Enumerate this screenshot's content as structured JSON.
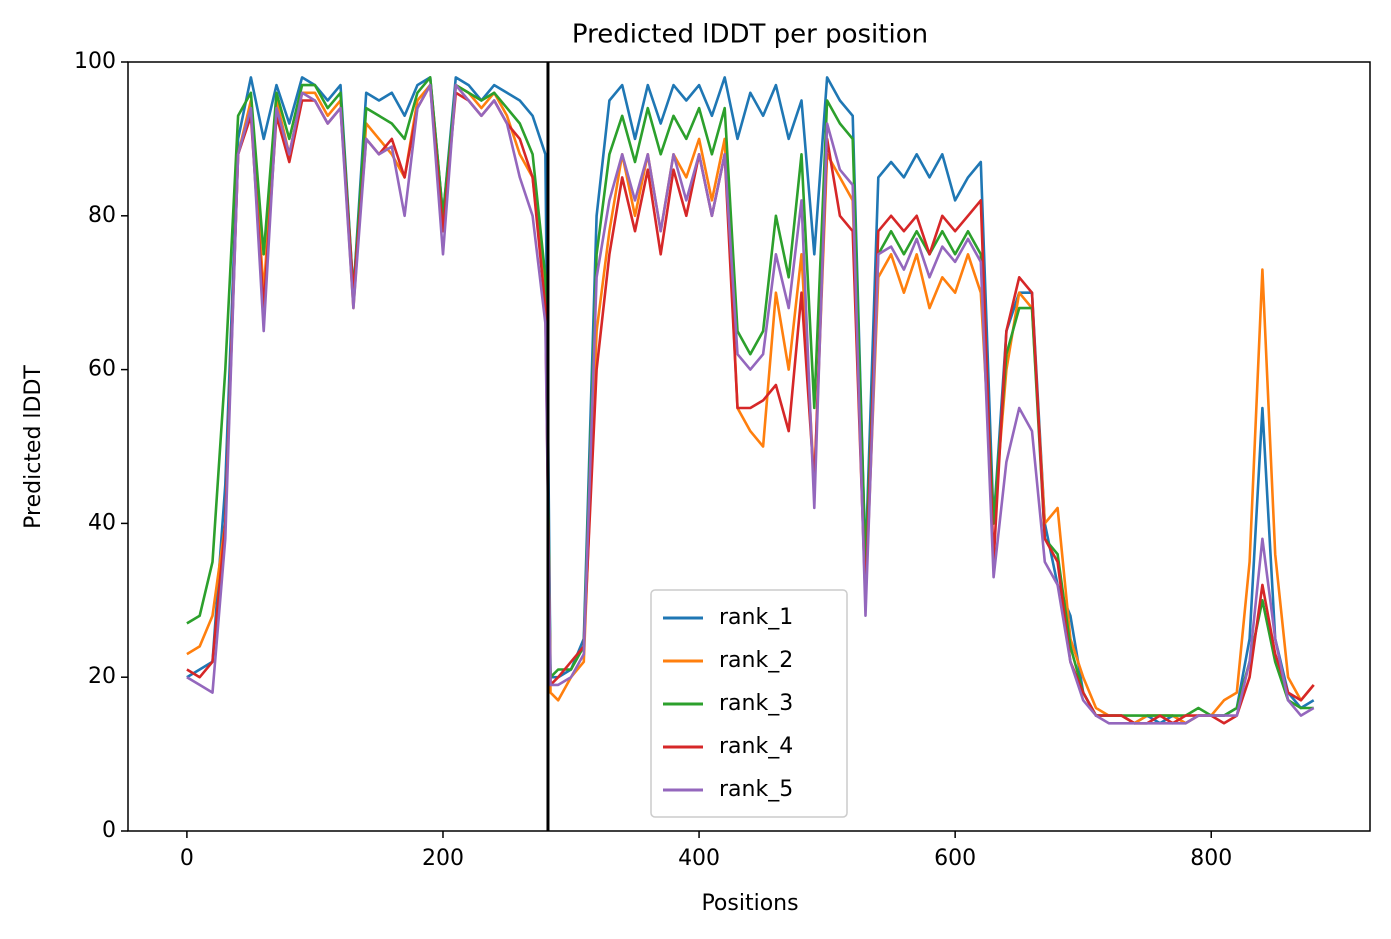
{
  "chart_data": {
    "type": "line",
    "title": "Predicted lDDT per position",
    "xlabel": "Positions",
    "ylabel": "Predicted lDDT",
    "x": [
      0,
      10,
      20,
      30,
      40,
      50,
      60,
      70,
      80,
      90,
      100,
      110,
      120,
      130,
      140,
      150,
      160,
      170,
      180,
      190,
      200,
      210,
      220,
      230,
      240,
      250,
      260,
      270,
      280,
      284,
      290,
      300,
      310,
      320,
      330,
      340,
      350,
      360,
      370,
      380,
      390,
      400,
      410,
      420,
      430,
      440,
      450,
      460,
      470,
      480,
      490,
      500,
      510,
      520,
      530,
      540,
      550,
      560,
      570,
      580,
      590,
      600,
      610,
      620,
      630,
      640,
      650,
      660,
      670,
      680,
      690,
      700,
      710,
      720,
      730,
      740,
      750,
      760,
      770,
      780,
      790,
      800,
      810,
      820,
      830,
      840,
      850,
      860,
      870,
      880
    ],
    "series": [
      {
        "name": "rank_1",
        "color": "#1f77b4",
        "values": [
          20,
          21,
          22,
          45,
          90,
          98,
          90,
          97,
          92,
          98,
          97,
          95,
          97,
          70,
          96,
          95,
          96,
          93,
          97,
          98,
          80,
          98,
          97,
          95,
          97,
          96,
          95,
          93,
          88,
          20,
          20,
          21,
          25,
          80,
          95,
          97,
          90,
          97,
          92,
          97,
          95,
          97,
          93,
          98,
          90,
          96,
          93,
          97,
          90,
          95,
          75,
          98,
          95,
          93,
          35,
          85,
          87,
          85,
          88,
          85,
          88,
          82,
          85,
          87,
          40,
          65,
          70,
          70,
          40,
          32,
          28,
          18,
          15,
          15,
          15,
          14,
          15,
          14,
          15,
          14,
          15,
          15,
          15,
          16,
          25,
          55,
          25,
          18,
          16,
          17
        ]
      },
      {
        "name": "rank_2",
        "color": "#ff7f0e",
        "values": [
          23,
          24,
          28,
          40,
          88,
          95,
          70,
          95,
          88,
          96,
          96,
          93,
          95,
          68,
          92,
          90,
          88,
          85,
          95,
          97,
          78,
          97,
          96,
          94,
          96,
          93,
          88,
          85,
          70,
          18,
          17,
          20,
          22,
          65,
          78,
          88,
          80,
          88,
          78,
          88,
          85,
          90,
          82,
          90,
          55,
          52,
          50,
          70,
          60,
          75,
          45,
          88,
          85,
          82,
          30,
          72,
          75,
          70,
          75,
          68,
          72,
          70,
          75,
          70,
          40,
          60,
          70,
          68,
          40,
          42,
          25,
          20,
          16,
          15,
          15,
          14,
          15,
          15,
          15,
          14,
          15,
          15,
          17,
          18,
          35,
          73,
          36,
          20,
          17,
          19
        ]
      },
      {
        "name": "rank_3",
        "color": "#2ca02c",
        "values": [
          27,
          28,
          35,
          60,
          93,
          96,
          75,
          96,
          90,
          97,
          97,
          94,
          96,
          70,
          94,
          93,
          92,
          90,
          96,
          98,
          80,
          97,
          96,
          95,
          96,
          94,
          92,
          88,
          72,
          20,
          21,
          21,
          24,
          75,
          88,
          93,
          87,
          94,
          88,
          93,
          90,
          94,
          88,
          94,
          65,
          62,
          65,
          80,
          72,
          88,
          55,
          95,
          92,
          90,
          35,
          75,
          78,
          75,
          78,
          75,
          78,
          75,
          78,
          75,
          40,
          62,
          68,
          68,
          38,
          36,
          24,
          18,
          15,
          15,
          15,
          15,
          15,
          15,
          15,
          15,
          16,
          15,
          15,
          16,
          22,
          30,
          22,
          17,
          16,
          16
        ]
      },
      {
        "name": "rank_4",
        "color": "#d62728",
        "values": [
          21,
          20,
          22,
          40,
          88,
          93,
          68,
          93,
          87,
          95,
          95,
          92,
          94,
          70,
          90,
          88,
          90,
          85,
          94,
          97,
          78,
          96,
          95,
          93,
          95,
          92,
          90,
          85,
          68,
          19,
          20,
          22,
          24,
          60,
          75,
          85,
          78,
          86,
          75,
          86,
          80,
          88,
          80,
          88,
          55,
          55,
          56,
          58,
          52,
          70,
          45,
          90,
          80,
          78,
          30,
          78,
          80,
          78,
          80,
          75,
          80,
          78,
          80,
          82,
          35,
          65,
          72,
          70,
          38,
          35,
          22,
          18,
          15,
          15,
          15,
          14,
          14,
          15,
          14,
          15,
          15,
          15,
          14,
          15,
          20,
          32,
          23,
          18,
          17,
          19
        ]
      },
      {
        "name": "rank_5",
        "color": "#9467bd",
        "values": [
          20,
          19,
          18,
          38,
          88,
          94,
          65,
          94,
          88,
          96,
          95,
          92,
          94,
          68,
          90,
          88,
          89,
          80,
          94,
          97,
          75,
          97,
          95,
          93,
          95,
          92,
          85,
          80,
          66,
          19,
          19,
          20,
          23,
          72,
          82,
          88,
          82,
          88,
          78,
          88,
          82,
          88,
          80,
          88,
          62,
          60,
          62,
          75,
          68,
          82,
          42,
          92,
          86,
          84,
          28,
          75,
          76,
          73,
          77,
          72,
          76,
          74,
          77,
          74,
          33,
          48,
          55,
          52,
          35,
          32,
          22,
          17,
          15,
          14,
          14,
          14,
          14,
          14,
          14,
          14,
          15,
          15,
          15,
          15,
          22,
          38,
          25,
          17,
          15,
          16
        ]
      }
    ],
    "vline": 282,
    "xlim": [
      -46,
      924
    ],
    "ylim": [
      0,
      100
    ],
    "xticks": [
      0,
      200,
      400,
      600,
      800
    ],
    "yticks": [
      0,
      20,
      40,
      60,
      80,
      100
    ],
    "legend": "lower center"
  }
}
